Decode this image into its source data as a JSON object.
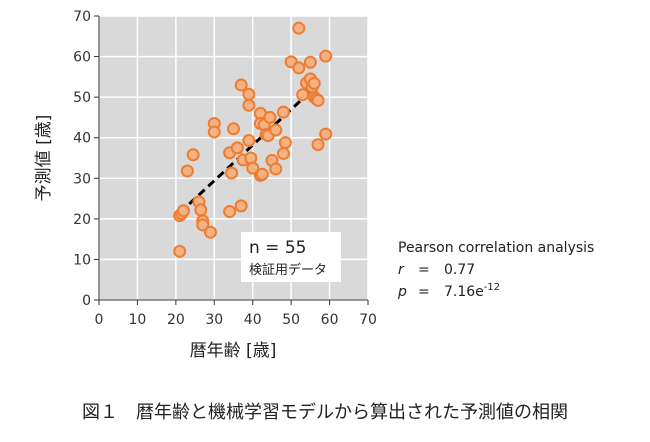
{
  "chart_data": {
    "type": "scatter",
    "xlabel": "暦年齢 [歳]",
    "ylabel": "予測値 [歳]",
    "xlim": [
      0,
      70
    ],
    "ylim": [
      0,
      70
    ],
    "xticks": [
      "0",
      "10",
      "20",
      "30",
      "40",
      "50",
      "60",
      "70"
    ],
    "yticks": [
      "0",
      "10",
      "20",
      "30",
      "40",
      "50",
      "60",
      "70"
    ],
    "grid": true,
    "marker_color": "#F4B183",
    "marker_edge_color": "#ED7D31",
    "trendline": {
      "style": "dashed",
      "color": "#000000",
      "x": [
        21,
        58
      ],
      "y": [
        21.5,
        54
      ]
    },
    "points": [
      {
        "x": 21,
        "y": 12
      },
      {
        "x": 21,
        "y": 20.8
      },
      {
        "x": 21.5,
        "y": 21.3
      },
      {
        "x": 22,
        "y": 22
      },
      {
        "x": 23,
        "y": 31.8
      },
      {
        "x": 24.5,
        "y": 35.8
      },
      {
        "x": 26,
        "y": 24.2
      },
      {
        "x": 26.5,
        "y": 22.2
      },
      {
        "x": 27,
        "y": 19.5
      },
      {
        "x": 27,
        "y": 18.5
      },
      {
        "x": 29,
        "y": 16.7
      },
      {
        "x": 30,
        "y": 43.5
      },
      {
        "x": 30,
        "y": 41.4
      },
      {
        "x": 34,
        "y": 21.8
      },
      {
        "x": 34,
        "y": 36.3
      },
      {
        "x": 34.5,
        "y": 31.3
      },
      {
        "x": 35,
        "y": 42.2
      },
      {
        "x": 36,
        "y": 37.5
      },
      {
        "x": 37,
        "y": 53
      },
      {
        "x": 37,
        "y": 23.2
      },
      {
        "x": 37.5,
        "y": 34.5
      },
      {
        "x": 39,
        "y": 50.7
      },
      {
        "x": 39,
        "y": 48
      },
      {
        "x": 39,
        "y": 39.3
      },
      {
        "x": 39.5,
        "y": 35
      },
      {
        "x": 40,
        "y": 32.5
      },
      {
        "x": 42,
        "y": 46
      },
      {
        "x": 42,
        "y": 43.5
      },
      {
        "x": 42,
        "y": 30.7
      },
      {
        "x": 42.5,
        "y": 31
      },
      {
        "x": 43,
        "y": 43.2
      },
      {
        "x": 43.5,
        "y": 40.8
      },
      {
        "x": 44,
        "y": 40.5
      },
      {
        "x": 44.5,
        "y": 45
      },
      {
        "x": 45,
        "y": 34.4
      },
      {
        "x": 46,
        "y": 32.3
      },
      {
        "x": 46,
        "y": 41.9
      },
      {
        "x": 48,
        "y": 46.3
      },
      {
        "x": 48,
        "y": 36.1
      },
      {
        "x": 48.5,
        "y": 38.8
      },
      {
        "x": 50,
        "y": 58.7
      },
      {
        "x": 52,
        "y": 67
      },
      {
        "x": 52,
        "y": 57.2
      },
      {
        "x": 53,
        "y": 50.6
      },
      {
        "x": 54,
        "y": 53.5
      },
      {
        "x": 55,
        "y": 58.6
      },
      {
        "x": 55,
        "y": 54.5
      },
      {
        "x": 55.5,
        "y": 52.5
      },
      {
        "x": 56,
        "y": 53.4
      },
      {
        "x": 56,
        "y": 50
      },
      {
        "x": 56.5,
        "y": 49.6
      },
      {
        "x": 57,
        "y": 49.2
      },
      {
        "x": 57,
        "y": 38.3
      },
      {
        "x": 59,
        "y": 60.1
      },
      {
        "x": 59,
        "y": 40.9
      }
    ]
  },
  "annotation": {
    "n_text": "n = 55",
    "subset": "検証用データ"
  },
  "stats": {
    "title": "Pearson correlation analysis",
    "r_label": "r",
    "eq": "=",
    "r_value": "0.77",
    "p_label": "p",
    "p_value": "7.16e",
    "p_exp": "-12"
  },
  "caption": "図１　暦年齢と機械学習モデルから算出された予測値の相関"
}
